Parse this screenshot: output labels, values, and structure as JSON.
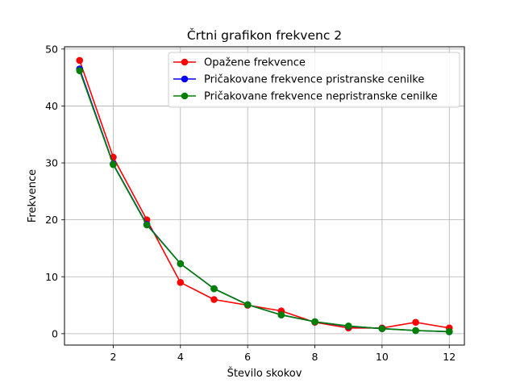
{
  "chart_data": {
    "type": "line",
    "title": "Črtni grafikon frekvenc 2",
    "xlabel": "Število skokov",
    "ylabel": "Frekvence",
    "x": [
      1,
      2,
      3,
      4,
      5,
      6,
      7,
      8,
      9,
      10,
      11,
      12
    ],
    "xlim": [
      0.55,
      12.45
    ],
    "ylim": [
      -2.0,
      50.4
    ],
    "xticks": [
      2,
      4,
      6,
      8,
      10,
      12
    ],
    "yticks": [
      0,
      10,
      20,
      30,
      40,
      50
    ],
    "grid": true,
    "legend_position": "top-right",
    "series": [
      {
        "name": "Opažene frekvence",
        "color": "#ff0000",
        "values": [
          48,
          31,
          20,
          9,
          6,
          5,
          4,
          2,
          1,
          1,
          2,
          1
        ]
      },
      {
        "name": "Pričakovane frekvence pristranske cenilke",
        "color": "#0000ff",
        "values": [
          46.5,
          29.8,
          19.2,
          12.3,
          7.9,
          5.1,
          3.3,
          2.1,
          1.3,
          0.9,
          0.55,
          0.35
        ]
      },
      {
        "name": "Pričakovane frekvence nepristranske cenilke",
        "color": "#008000",
        "values": [
          46.2,
          29.7,
          19.1,
          12.3,
          7.9,
          5.1,
          3.3,
          2.1,
          1.35,
          0.87,
          0.56,
          0.36
        ]
      }
    ]
  }
}
